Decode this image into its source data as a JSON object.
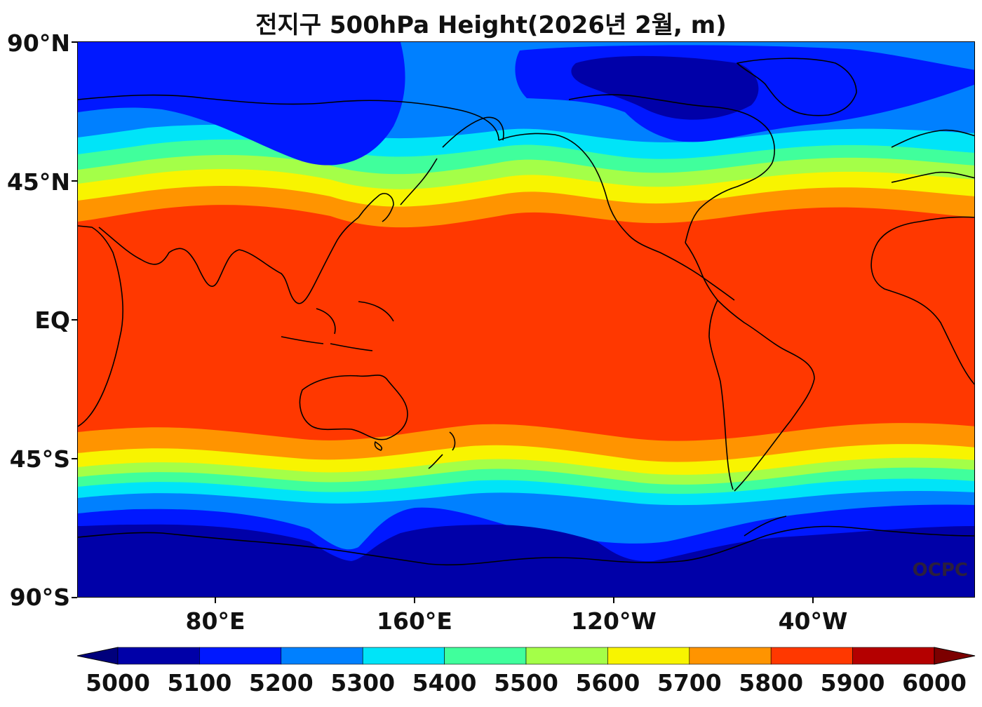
{
  "title": "전지구 500hPa Height(2026년 2월, m)",
  "watermark": "OCPC",
  "axes": {
    "y_ticks": [
      "90°N",
      "45°N",
      "EQ",
      "45°S",
      "90°S"
    ],
    "x_ticks": [
      "80°E",
      "160°E",
      "120°W",
      "40°W"
    ]
  },
  "colorbar": {
    "labels": [
      "5000",
      "5100",
      "5200",
      "5300",
      "5400",
      "5500",
      "5600",
      "5700",
      "5800",
      "5900",
      "6000"
    ],
    "colors": [
      "#0000a8",
      "#0018ff",
      "#0080ff",
      "#00e4f8",
      "#40ff9c",
      "#a4ff48",
      "#f8f400",
      "#ff9400",
      "#ff3800",
      "#b40000"
    ],
    "under_color": "#00007c",
    "over_color": "#7c0000"
  }
}
